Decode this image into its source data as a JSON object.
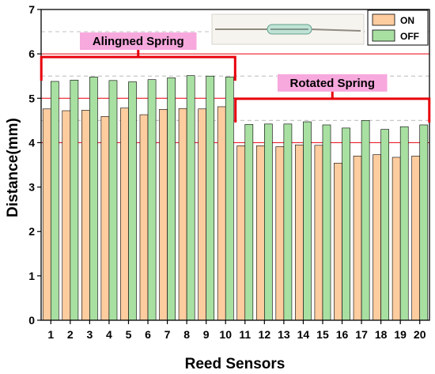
{
  "chart_data": {
    "type": "bar",
    "xlabel": "Reed Sensors",
    "ylabel": "Distance(mm)",
    "ylim": [
      0,
      7
    ],
    "yticks": [
      0,
      1,
      2,
      3,
      4,
      5,
      6,
      7
    ],
    "categories": [
      "1",
      "2",
      "3",
      "4",
      "5",
      "6",
      "7",
      "8",
      "9",
      "10",
      "11",
      "12",
      "13",
      "14",
      "15",
      "16",
      "17",
      "18",
      "19",
      "20"
    ],
    "series": [
      {
        "name": "ON",
        "color": "#fdcc9f",
        "values": [
          4.76,
          4.72,
          4.73,
          4.59,
          4.78,
          4.63,
          4.75,
          4.77,
          4.76,
          4.81,
          3.93,
          3.93,
          3.91,
          3.95,
          3.94,
          3.54,
          3.7,
          3.73,
          3.67,
          3.7
        ]
      },
      {
        "name": "OFF",
        "color": "#a8e0a2",
        "values": [
          5.38,
          5.41,
          5.48,
          5.4,
          5.37,
          5.42,
          5.46,
          5.51,
          5.5,
          5.48,
          4.41,
          4.42,
          4.42,
          4.47,
          4.4,
          4.33,
          4.5,
          4.3,
          4.36,
          4.4
        ]
      }
    ],
    "legend": "top-right",
    "reference_lines": {
      "solid_red": [
        4,
        5,
        6
      ],
      "dashed_gray": [
        4.5,
        5.5,
        6.5
      ]
    },
    "annotations": [
      {
        "label": "Alingned Spring",
        "from_category": 1,
        "to_category": 10,
        "bracket_y": 5.93
      },
      {
        "label": "Rotated Spring",
        "from_category": 11,
        "to_category": 20,
        "bracket_y": 4.99
      }
    ],
    "colors": {
      "accent_red": "#e8000b",
      "label_bg": "#f7a8dd",
      "axis": "#000000"
    }
  }
}
